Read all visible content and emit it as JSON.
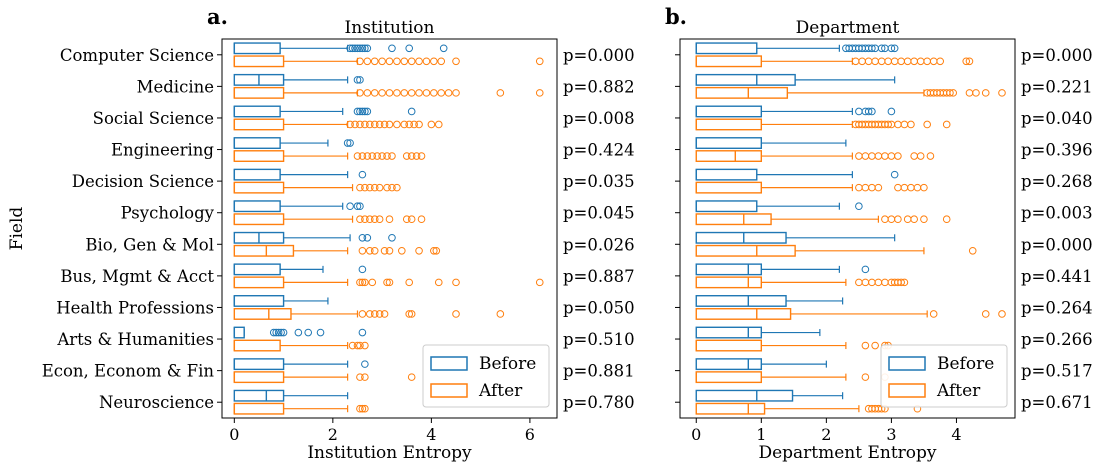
{
  "chart_data": [
    {
      "type": "box",
      "panel_letter": "a.",
      "title": "Institution",
      "xlabel": "Institution Entropy",
      "ylabel": "Field",
      "xlim": [
        -0.25,
        6.55
      ],
      "xticks": [
        0,
        2,
        4,
        6
      ],
      "legend": {
        "position": "lower-right",
        "entries": [
          "Before",
          "After"
        ]
      },
      "series_colors": {
        "Before": "#1f77b4",
        "After": "#ff7f0e"
      },
      "fields": [
        {
          "name": "Computer Science",
          "p": "p=0.000",
          "before": {
            "q1": 0,
            "median": 0,
            "q3": 0.93,
            "whisker_high": 2.3,
            "outliers": [
              2.35,
              2.4,
              2.45,
              2.5,
              2.55,
              2.6,
              2.65,
              2.7,
              3.2,
              3.55,
              4.25
            ]
          },
          "after": {
            "q1": 0,
            "median": 0,
            "q3": 1.0,
            "whisker_high": 2.5,
            "outliers": [
              2.55,
              2.7,
              2.85,
              3.0,
              3.15,
              3.3,
              3.45,
              3.6,
              3.75,
              3.9,
              4.05,
              4.2,
              4.5,
              6.2
            ]
          }
        },
        {
          "name": "Medicine",
          "p": "p=0.882",
          "before": {
            "q1": 0,
            "median": 0.5,
            "q3": 1.0,
            "whisker_high": 2.3,
            "outliers": [
              2.5,
              2.55
            ]
          },
          "after": {
            "q1": 0,
            "median": 0,
            "q3": 1.0,
            "whisker_high": 2.5,
            "outliers": [
              2.55,
              2.7,
              2.85,
              3.0,
              3.15,
              3.3,
              3.45,
              3.6,
              3.75,
              3.9,
              4.05,
              4.2,
              4.35,
              4.5,
              5.4,
              6.2
            ]
          }
        },
        {
          "name": "Social Science",
          "p": "p=0.008",
          "before": {
            "q1": 0,
            "median": 0,
            "q3": 0.93,
            "whisker_high": 2.2,
            "outliers": [
              2.5,
              2.55,
              2.6,
              2.65,
              2.7,
              3.6
            ]
          },
          "after": {
            "q1": 0,
            "median": 0,
            "q3": 1.0,
            "whisker_high": 2.3,
            "outliers": [
              2.35,
              2.45,
              2.55,
              2.65,
              2.75,
              2.85,
              2.95,
              3.05,
              3.15,
              3.3,
              3.45,
              3.55,
              3.65,
              3.75,
              4.0,
              4.15
            ]
          }
        },
        {
          "name": "Engineering",
          "p": "p=0.424",
          "before": {
            "q1": 0,
            "median": 0,
            "q3": 0.93,
            "whisker_high": 1.9,
            "outliers": [
              2.3,
              2.35
            ]
          },
          "after": {
            "q1": 0,
            "median": 0,
            "q3": 1.0,
            "whisker_high": 2.3,
            "outliers": [
              2.5,
              2.6,
              2.7,
              2.8,
              2.9,
              3.0,
              3.1,
              3.2,
              3.5,
              3.6,
              3.7,
              3.8
            ]
          }
        },
        {
          "name": "Decision Science",
          "p": "p=0.035",
          "before": {
            "q1": 0,
            "median": 0,
            "q3": 0.93,
            "whisker_high": 2.3,
            "outliers": [
              2.6
            ]
          },
          "after": {
            "q1": 0,
            "median": 0,
            "q3": 1.0,
            "whisker_high": 2.4,
            "outliers": [
              2.55,
              2.65,
              2.75,
              2.85,
              2.95,
              3.1,
              3.2,
              3.3
            ]
          }
        },
        {
          "name": "Psychology",
          "p": "p=0.045",
          "before": {
            "q1": 0,
            "median": 0,
            "q3": 0.93,
            "whisker_high": 2.2,
            "outliers": [
              2.35,
              2.5,
              2.55
            ]
          },
          "after": {
            "q1": 0,
            "median": 0,
            "q3": 1.0,
            "whisker_high": 2.4,
            "outliers": [
              2.55,
              2.65,
              2.75,
              2.85,
              2.95,
              3.15,
              3.5,
              3.6,
              3.8
            ]
          }
        },
        {
          "name": "Bio, Gen & Mol",
          "p": "p=0.026",
          "before": {
            "q1": 0,
            "median": 0.5,
            "q3": 1.0,
            "whisker_high": 2.35,
            "outliers": [
              2.6,
              2.7,
              3.2
            ]
          },
          "after": {
            "q1": 0,
            "median": 0.65,
            "q3": 1.2,
            "whisker_high": 2.3,
            "outliers": [
              2.6,
              2.75,
              2.85,
              3.05,
              3.15,
              3.4,
              3.75,
              4.05,
              4.1
            ]
          }
        },
        {
          "name": "Bus, Mgmt & Acct",
          "p": "p=0.887",
          "before": {
            "q1": 0,
            "median": 0,
            "q3": 0.93,
            "whisker_high": 1.8,
            "outliers": [
              2.6
            ]
          },
          "after": {
            "q1": 0,
            "median": 0,
            "q3": 1.0,
            "whisker_high": 2.3,
            "outliers": [
              2.55,
              2.6,
              2.65,
              2.8,
              3.1,
              3.15,
              3.55,
              4.15,
              4.5,
              6.2
            ]
          }
        },
        {
          "name": "Health Professions",
          "p": "p=0.050",
          "before": {
            "q1": 0,
            "median": 0,
            "q3": 1.0,
            "whisker_high": 1.9,
            "outliers": []
          },
          "after": {
            "q1": 0,
            "median": 0.7,
            "q3": 1.15,
            "whisker_high": 2.5,
            "outliers": [
              2.6,
              2.75,
              2.85,
              2.95,
              3.05,
              3.55,
              3.6,
              4.5,
              5.4
            ]
          }
        },
        {
          "name": "Arts & Humanities",
          "p": "p=0.510",
          "before": {
            "q1": 0,
            "median": 0,
            "q3": 0.2,
            "whisker_high": 0.2,
            "outliers": [
              0.8,
              0.85,
              0.9,
              0.95,
              1.0,
              1.3,
              1.5,
              1.75,
              2.6
            ]
          },
          "after": {
            "q1": 0,
            "median": 0,
            "q3": 0.93,
            "whisker_high": 2.3,
            "outliers": [
              2.4,
              2.5,
              2.55,
              2.65
            ]
          }
        },
        {
          "name": "Econ, Econom & Fin",
          "p": "p=0.881",
          "before": {
            "q1": 0,
            "median": 0,
            "q3": 1.0,
            "whisker_high": 2.3,
            "outliers": [
              2.65
            ]
          },
          "after": {
            "q1": 0,
            "median": 0,
            "q3": 1.0,
            "whisker_high": 2.3,
            "outliers": [
              2.55,
              2.65,
              3.6
            ]
          }
        },
        {
          "name": "Neuroscience",
          "p": "p=0.780",
          "before": {
            "q1": 0,
            "median": 0.65,
            "q3": 1.0,
            "whisker_high": 2.3,
            "outliers": []
          },
          "after": {
            "q1": 0,
            "median": 0,
            "q3": 1.0,
            "whisker_high": 2.3,
            "outliers": [
              2.55,
              2.6,
              2.65
            ]
          }
        }
      ]
    },
    {
      "type": "box",
      "panel_letter": "b.",
      "title": "Department",
      "xlabel": "Department Entropy",
      "xlim": [
        -0.25,
        4.9
      ],
      "xticks": [
        0,
        1,
        2,
        3,
        4
      ],
      "legend": {
        "position": "lower-right",
        "entries": [
          "Before",
          "After"
        ]
      },
      "series_colors": {
        "Before": "#1f77b4",
        "After": "#ff7f0e"
      },
      "fields": [
        {
          "name": "Computer Science",
          "p": "p=0.000",
          "before": {
            "q1": 0,
            "median": 0,
            "q3": 0.93,
            "whisker_high": 2.2,
            "outliers": [
              2.3,
              2.35,
              2.4,
              2.45,
              2.5,
              2.55,
              2.6,
              2.65,
              2.7,
              2.75,
              2.85,
              2.9,
              3.0,
              3.05
            ]
          },
          "after": {
            "q1": 0,
            "median": 0,
            "q3": 1.0,
            "whisker_high": 2.4,
            "outliers": [
              2.45,
              2.55,
              2.65,
              2.75,
              2.85,
              2.95,
              3.05,
              3.15,
              3.25,
              3.35,
              3.45,
              3.55,
              3.65,
              3.75,
              4.15,
              4.2
            ]
          }
        },
        {
          "name": "Medicine",
          "p": "p=0.221",
          "before": {
            "q1": 0,
            "median": 0.93,
            "q3": 1.52,
            "whisker_high": 3.05,
            "outliers": []
          },
          "after": {
            "q1": 0,
            "median": 0.8,
            "q3": 1.4,
            "whisker_high": 3.5,
            "outliers": [
              3.55,
              3.6,
              3.65,
              3.7,
              3.75,
              3.8,
              3.85,
              3.9,
              3.95,
              4.2,
              4.3,
              4.45,
              4.7
            ]
          }
        },
        {
          "name": "Social Science",
          "p": "p=0.040",
          "before": {
            "q1": 0,
            "median": 0,
            "q3": 1.0,
            "whisker_high": 2.4,
            "outliers": [
              2.5,
              2.6,
              2.65,
              2.7,
              3.0
            ]
          },
          "after": {
            "q1": 0,
            "median": 0,
            "q3": 1.0,
            "whisker_high": 2.4,
            "outliers": [
              2.45,
              2.5,
              2.55,
              2.6,
              2.65,
              2.7,
              2.75,
              2.8,
              2.85,
              2.9,
              2.95,
              3.0,
              3.1,
              3.2,
              3.3,
              3.55,
              3.85
            ]
          }
        },
        {
          "name": "Engineering",
          "p": "p=0.396",
          "before": {
            "q1": 0,
            "median": 0,
            "q3": 1.0,
            "whisker_high": 2.3,
            "outliers": []
          },
          "after": {
            "q1": 0,
            "median": 0.6,
            "q3": 1.0,
            "whisker_high": 2.4,
            "outliers": [
              2.5,
              2.6,
              2.7,
              2.8,
              2.9,
              3.0,
              3.1,
              3.35,
              3.45,
              3.6
            ]
          }
        },
        {
          "name": "Decision Science",
          "p": "p=0.268",
          "before": {
            "q1": 0,
            "median": 0,
            "q3": 0.93,
            "whisker_high": 2.4,
            "outliers": [
              3.05
            ]
          },
          "after": {
            "q1": 0,
            "median": 0,
            "q3": 1.0,
            "whisker_high": 2.4,
            "outliers": [
              2.5,
              2.6,
              2.7,
              2.8,
              3.1,
              3.2,
              3.3,
              3.4,
              3.5
            ]
          }
        },
        {
          "name": "Psychology",
          "p": "p=0.003",
          "before": {
            "q1": 0,
            "median": 0,
            "q3": 0.93,
            "whisker_high": 2.2,
            "outliers": [
              2.5
            ]
          },
          "after": {
            "q1": 0,
            "median": 0.73,
            "q3": 1.15,
            "whisker_high": 2.8,
            "outliers": [
              2.9,
              3.0,
              3.1,
              3.25,
              3.35,
              3.5,
              3.85
            ]
          }
        },
        {
          "name": "Bio, Gen & Mol",
          "p": "p=0.000",
          "before": {
            "q1": 0,
            "median": 0.73,
            "q3": 1.38,
            "whisker_high": 3.05,
            "outliers": []
          },
          "after": {
            "q1": 0,
            "median": 0.93,
            "q3": 1.52,
            "whisker_high": 3.5,
            "outliers": [
              4.25
            ]
          }
        },
        {
          "name": "Bus, Mgmt & Acct",
          "p": "p=0.441",
          "before": {
            "q1": 0,
            "median": 0.8,
            "q3": 1.0,
            "whisker_high": 2.2,
            "outliers": [
              2.6
            ]
          },
          "after": {
            "q1": 0,
            "median": 0.8,
            "q3": 1.0,
            "whisker_high": 2.3,
            "outliers": [
              2.5,
              2.6,
              2.7,
              2.8,
              2.9,
              3.0,
              3.05,
              3.1,
              3.15,
              3.2
            ]
          }
        },
        {
          "name": "Health Professions",
          "p": "p=0.264",
          "before": {
            "q1": 0,
            "median": 0.8,
            "q3": 1.38,
            "whisker_high": 2.25,
            "outliers": []
          },
          "after": {
            "q1": 0,
            "median": 0.93,
            "q3": 1.45,
            "whisker_high": 3.55,
            "outliers": [
              3.65,
              4.45,
              4.7
            ]
          }
        },
        {
          "name": "Arts & Humanities",
          "p": "p=0.266",
          "before": {
            "q1": 0,
            "median": 0.8,
            "q3": 1.0,
            "whisker_high": 1.9,
            "outliers": []
          },
          "after": {
            "q1": 0,
            "median": 0,
            "q3": 1.0,
            "whisker_high": 2.3,
            "outliers": [
              2.6,
              2.75,
              2.9,
              2.95
            ]
          }
        },
        {
          "name": "Econ, Econom & Fin",
          "p": "p=0.517",
          "before": {
            "q1": 0,
            "median": 0.8,
            "q3": 1.0,
            "whisker_high": 2.0,
            "outliers": []
          },
          "after": {
            "q1": 0,
            "median": 0,
            "q3": 1.0,
            "whisker_high": 2.3,
            "outliers": [
              2.6,
              2.9
            ]
          }
        },
        {
          "name": "Neuroscience",
          "p": "p=0.671",
          "before": {
            "q1": 0,
            "median": 0.93,
            "q3": 1.48,
            "whisker_high": 2.25,
            "outliers": []
          },
          "after": {
            "q1": 0,
            "median": 0.8,
            "q3": 1.05,
            "whisker_high": 2.5,
            "outliers": [
              2.65,
              2.7,
              2.75,
              2.8,
              2.85,
              2.9,
              3.4
            ]
          }
        }
      ]
    }
  ]
}
